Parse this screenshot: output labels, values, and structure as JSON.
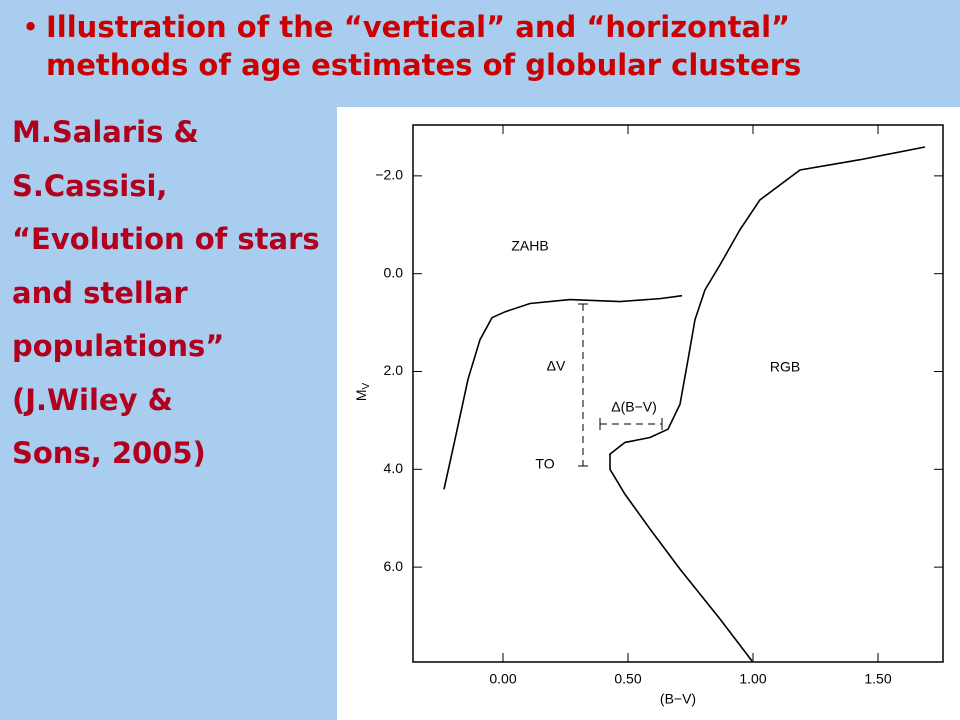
{
  "slide": {
    "title_lines": [
      "Illustration of the “vertical” and “horizontal”",
      "methods of age estimates of globular clusters"
    ],
    "side_text": [
      "M.Salaris &",
      "S.Cassisi,",
      "“Evolution of stars",
      "and stellar",
      "populations”",
      "(J.Wiley &",
      "Sons, 2005)"
    ]
  },
  "chart_data": {
    "type": "line",
    "x_label": "(B−V)",
    "y_label": "M",
    "y_label_sub": "V",
    "annotations": [
      "ZAHB",
      "ΔV",
      "Δ(B−V)",
      "TO",
      "RGB"
    ],
    "xlim": [
      -0.36,
      1.76
    ],
    "ylim": [
      7.94,
      -3.04
    ],
    "xticks": [
      {
        "value": 0,
        "label": "0.00"
      },
      {
        "value": 0.5,
        "label": "0.50"
      },
      {
        "value": 1,
        "label": "1.00"
      },
      {
        "value": 1.5,
        "label": "1.50"
      }
    ],
    "yticks": [
      {
        "value": -2,
        "label": "−2.0"
      },
      {
        "value": 0,
        "label": "0.0"
      },
      {
        "value": 2,
        "label": "2.0"
      },
      {
        "value": 4,
        "label": "4.0"
      },
      {
        "value": 6,
        "label": "6.0"
      }
    ],
    "series": [
      {
        "color": "#000000",
        "x": [
          -0.236,
          -0.192,
          -0.14,
          -0.092,
          -0.044,
          0.008,
          0.108,
          0.268,
          0.468,
          0.628,
          0.716
        ],
        "values": [
          4.41,
          3.39,
          2.16,
          1.35,
          0.9,
          0.78,
          0.61,
          0.53,
          0.57,
          0.51,
          0.45
        ]
      },
      {
        "color": "#000000",
        "x": [
          0.996,
          0.868,
          0.708,
          0.588,
          0.488,
          0.428,
          0.428,
          0.488,
          0.588,
          0.66,
          0.708,
          0.74,
          0.768,
          0.808,
          0.868,
          0.948,
          1.028,
          1.188,
          1.428,
          1.688
        ],
        "values": [
          7.92,
          7.06,
          6.04,
          5.22,
          4.51,
          4.0,
          3.69,
          3.45,
          3.35,
          3.18,
          2.67,
          1.76,
          0.94,
          0.33,
          -0.18,
          -0.9,
          -1.51,
          -2.12,
          -2.33,
          -2.59
        ]
      }
    ]
  }
}
